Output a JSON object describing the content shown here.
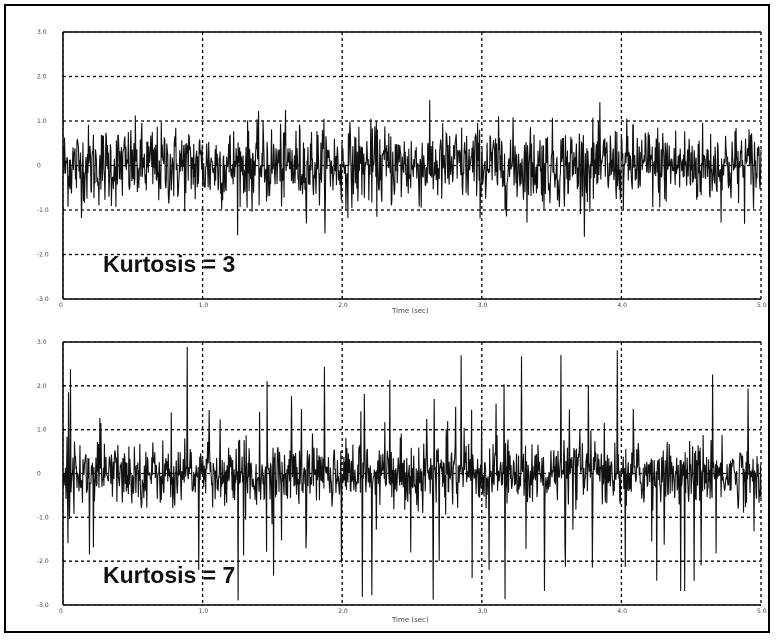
{
  "colors": {
    "signal": "#111111",
    "grid": "#000000",
    "background": "#ffffff"
  },
  "chart_data": [
    {
      "type": "line",
      "title": "",
      "xlabel": "Time (sec)",
      "ylabel": "",
      "annotation": "Kurtosis = 3",
      "xlim": [
        0,
        5
      ],
      "ylim": [
        -3,
        3
      ],
      "x_ticks": [
        "0",
        "1.0",
        "2.0",
        "3.0",
        "4.0",
        "5.0"
      ],
      "y_ticks": [
        "3.0",
        "2.0",
        "1.0",
        "0",
        "-1.0",
        "-2.0",
        "-3.0"
      ],
      "grid": true,
      "series": [
        {
          "x_range": [
            0,
            5
          ],
          "distribution": "gaussian",
          "kurtosis": 3,
          "envelope": [
            -1.5,
            1.5
          ],
          "max_peak": 1.6
        }
      ]
    },
    {
      "type": "line",
      "title": "",
      "xlabel": "Time (sec)",
      "ylabel": "",
      "annotation": "Kurtosis = 7",
      "xlim": [
        0,
        5
      ],
      "ylim": [
        -3,
        3
      ],
      "x_ticks": [
        "0",
        "1.0",
        "2.0",
        "3.0",
        "4.0",
        "5.0"
      ],
      "y_ticks": [
        "3.0",
        "2.0",
        "1.0",
        "0",
        "-1.0",
        "-2.0",
        "-3.0"
      ],
      "grid": true,
      "series": [
        {
          "x_range": [
            0,
            5
          ],
          "distribution": "impulsive",
          "kurtosis": 7,
          "envelope": [
            -1.1,
            1.1
          ],
          "max_peak": 2.9
        }
      ]
    }
  ]
}
